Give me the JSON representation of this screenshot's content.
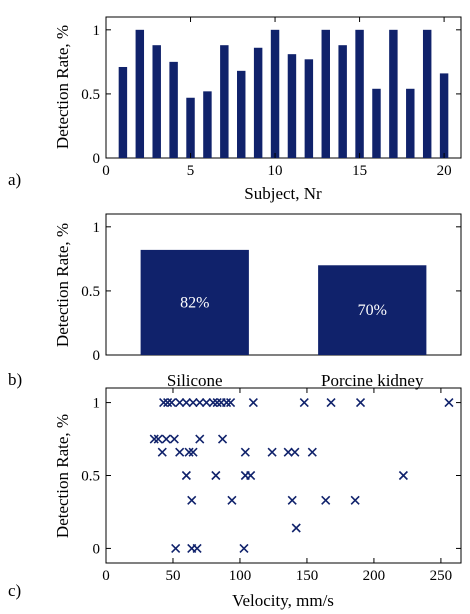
{
  "chart_data": [
    {
      "type": "bar",
      "panel_label": "a)",
      "xlabel": "Subject, Nr",
      "ylabel": "Detection Rate, %",
      "xlim": [
        0,
        21
      ],
      "ylim": [
        0,
        1.1
      ],
      "x_ticks": [
        0,
        5,
        10,
        15,
        20
      ],
      "y_ticks": [
        0,
        0.5,
        1
      ],
      "x": [
        1,
        2,
        3,
        4,
        5,
        6,
        7,
        8,
        9,
        10,
        11,
        12,
        13,
        14,
        15,
        16,
        17,
        18,
        19,
        20
      ],
      "values": [
        0.71,
        1.0,
        0.88,
        0.75,
        0.47,
        0.52,
        0.88,
        0.68,
        0.86,
        1.0,
        0.81,
        0.77,
        1.0,
        0.88,
        1.0,
        0.54,
        1.0,
        0.54,
        1.0,
        0.66
      ],
      "color": "#10226b"
    },
    {
      "type": "bar",
      "panel_label": "b)",
      "xlabel": "",
      "ylabel": "Detection Rate, %",
      "ylim": [
        0,
        1.1
      ],
      "y_ticks": [
        0,
        0.5,
        1
      ],
      "categories": [
        "Silicone",
        "Porcine kidney"
      ],
      "values": [
        0.82,
        0.7
      ],
      "data_labels": [
        "82%",
        "70%"
      ],
      "color": "#10226b"
    },
    {
      "type": "scatter",
      "panel_label": "c)",
      "xlabel": "Velocity, mm/s",
      "ylabel": "Detection Rate, %",
      "xlim": [
        0,
        265
      ],
      "ylim": [
        -0.1,
        1.1
      ],
      "x_ticks": [
        0,
        50,
        100,
        150,
        200,
        250
      ],
      "y_ticks": [
        0,
        0.5,
        1
      ],
      "marker": "x",
      "color": "#10226b",
      "points": [
        [
          43,
          1.0
        ],
        [
          46,
          1.0
        ],
        [
          49,
          1.0
        ],
        [
          55,
          1.0
        ],
        [
          60,
          1.0
        ],
        [
          65,
          1.0
        ],
        [
          70,
          1.0
        ],
        [
          75,
          1.0
        ],
        [
          80,
          1.0
        ],
        [
          83,
          1.0
        ],
        [
          86,
          1.0
        ],
        [
          90,
          1.0
        ],
        [
          93,
          1.0
        ],
        [
          110,
          1.0
        ],
        [
          148,
          1.0
        ],
        [
          168,
          1.0
        ],
        [
          190,
          1.0
        ],
        [
          256,
          1.0
        ],
        [
          36,
          0.75
        ],
        [
          39,
          0.75
        ],
        [
          45,
          0.75
        ],
        [
          51,
          0.75
        ],
        [
          70,
          0.75
        ],
        [
          87,
          0.75
        ],
        [
          42,
          0.66
        ],
        [
          55,
          0.66
        ],
        [
          62,
          0.66
        ],
        [
          65,
          0.66
        ],
        [
          104,
          0.66
        ],
        [
          124,
          0.66
        ],
        [
          136,
          0.66
        ],
        [
          141,
          0.66
        ],
        [
          154,
          0.66
        ],
        [
          60,
          0.5
        ],
        [
          82,
          0.5
        ],
        [
          104,
          0.5
        ],
        [
          108,
          0.5
        ],
        [
          222,
          0.5
        ],
        [
          64,
          0.33
        ],
        [
          94,
          0.33
        ],
        [
          139,
          0.33
        ],
        [
          164,
          0.33
        ],
        [
          186,
          0.33
        ],
        [
          142,
          0.14
        ],
        [
          52,
          0.0
        ],
        [
          64,
          0.0
        ],
        [
          68,
          0.0
        ],
        [
          103,
          0.0
        ]
      ]
    }
  ]
}
